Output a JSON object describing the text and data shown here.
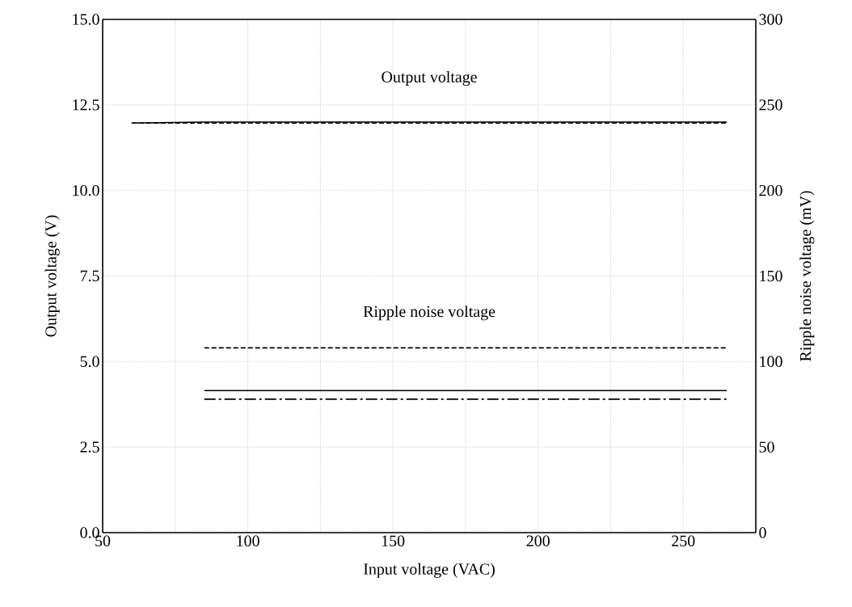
{
  "chart_data": {
    "type": "line",
    "xlabel": "Input voltage (VAC)",
    "ylabel": "Output voltage (V)",
    "y2label": "Ripple noise voltage (mV)",
    "xlim": [
      50,
      275
    ],
    "ylim": [
      0,
      15
    ],
    "y2lim": [
      0,
      300
    ],
    "xticks": [
      50,
      {
        "value": 75,
        "label": null
      },
      100,
      {
        "value": 125,
        "label": null
      },
      150,
      {
        "value": 175,
        "label": null
      },
      200,
      {
        "value": 225,
        "label": null
      },
      250
    ],
    "yticks": [
      {
        "value": 0,
        "label": "0.0"
      },
      {
        "value": 2.5,
        "label": "2.5"
      },
      {
        "value": 5,
        "label": "5.0"
      },
      {
        "value": 7.5,
        "label": "7.5"
      },
      {
        "value": 10,
        "label": "10.0"
      },
      {
        "value": 12.5,
        "label": "12.5"
      },
      {
        "value": 15,
        "label": "15.0"
      }
    ],
    "y2ticks": [
      0,
      50,
      100,
      150,
      200,
      250,
      300
    ],
    "grid": true,
    "series": [
      {
        "color": "#000000",
        "line_style": "solid",
        "axis": "y",
        "x": [
          60,
          85,
          265
        ],
        "values": [
          11.97,
          12.0,
          12.0
        ]
      },
      {
        "color": "#000000",
        "line_style": "dashed",
        "axis": "y",
        "x": [
          60,
          265
        ],
        "values": [
          11.97,
          11.97
        ]
      },
      {
        "color": "#000000",
        "line_style": "dashed",
        "axis": "y2",
        "x": [
          85,
          265
        ],
        "values": [
          108,
          108
        ]
      },
      {
        "color": "#000000",
        "line_style": "solid",
        "axis": "y2",
        "x": [
          85,
          265
        ],
        "values": [
          83,
          83
        ]
      },
      {
        "color": "#000000",
        "line_style": "dashdot",
        "axis": "y2",
        "x": [
          85,
          265
        ],
        "values": [
          78,
          78
        ]
      }
    ],
    "annotations": [
      "Output voltage",
      "Ripple noise voltage"
    ]
  }
}
